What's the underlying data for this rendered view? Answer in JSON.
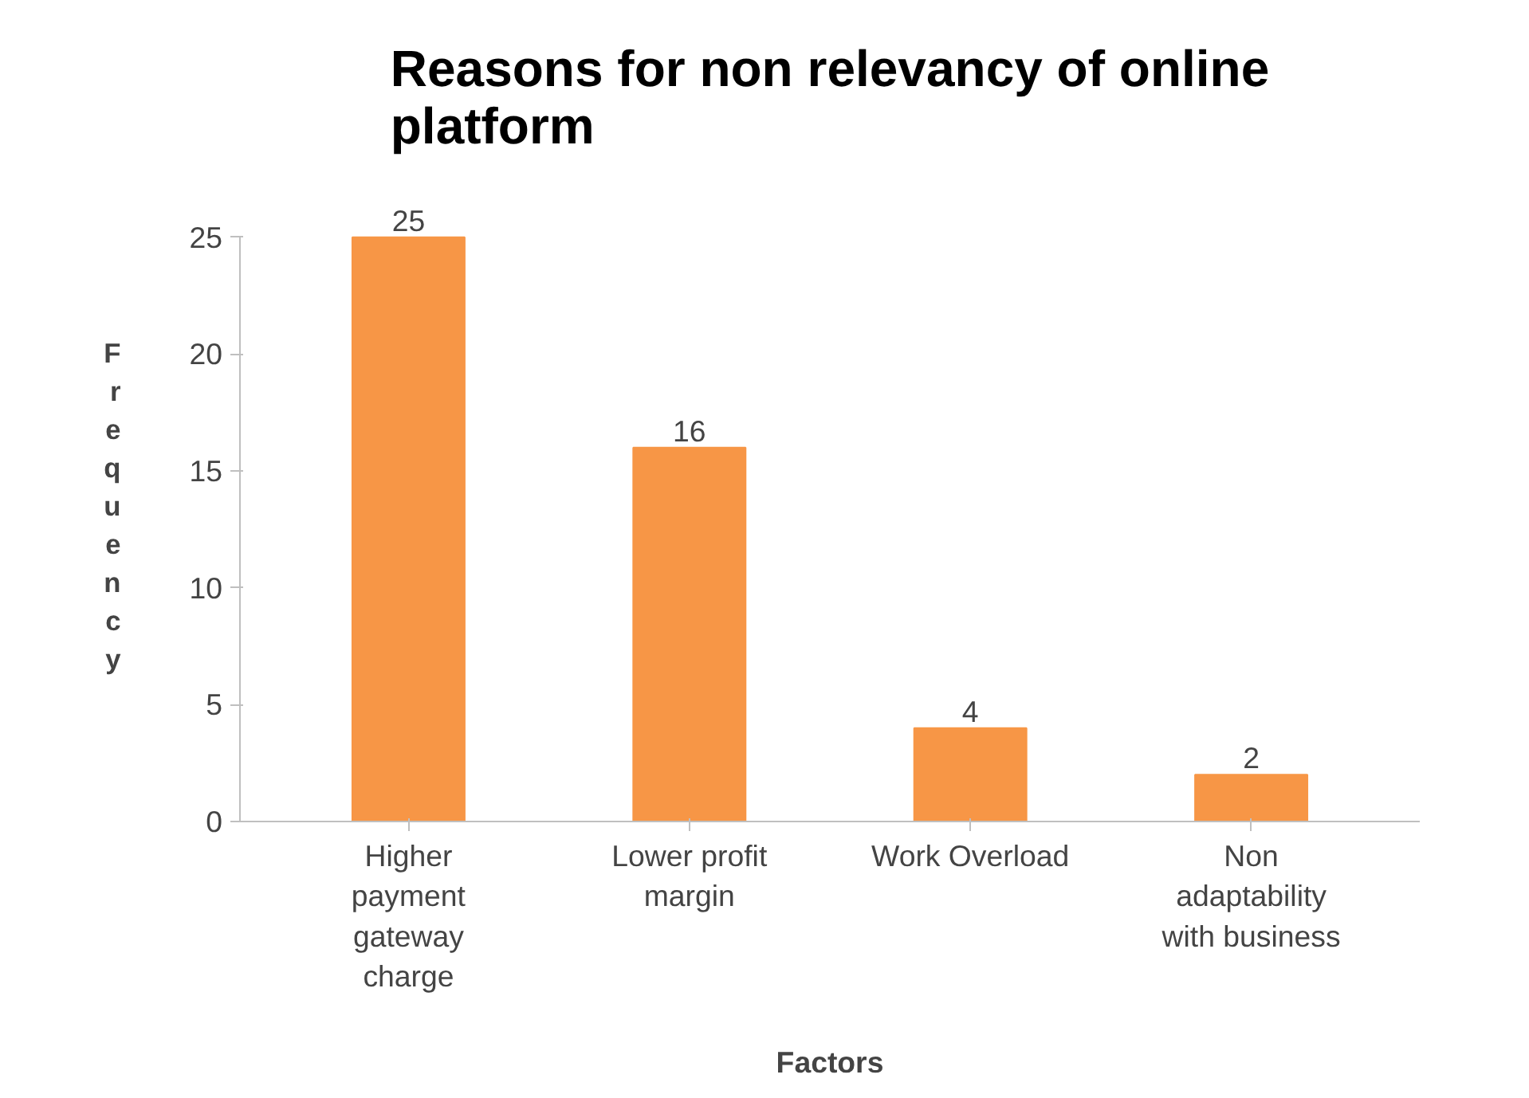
{
  "chart_data": {
    "type": "bar",
    "title": "Reasons for non relevancy of online platform",
    "xlabel": "Factors",
    "ylabel": "Frequency",
    "categories": [
      "Higher payment gateway charge",
      "Lower profit margin",
      "Work Overload",
      "Non adaptability with business"
    ],
    "values": [
      25,
      16,
      4,
      2
    ],
    "color": "#f79646",
    "ylim": [
      0,
      25
    ],
    "yticks": [
      0,
      5,
      10,
      15,
      20,
      25
    ],
    "grid": false,
    "data_labels": true
  }
}
